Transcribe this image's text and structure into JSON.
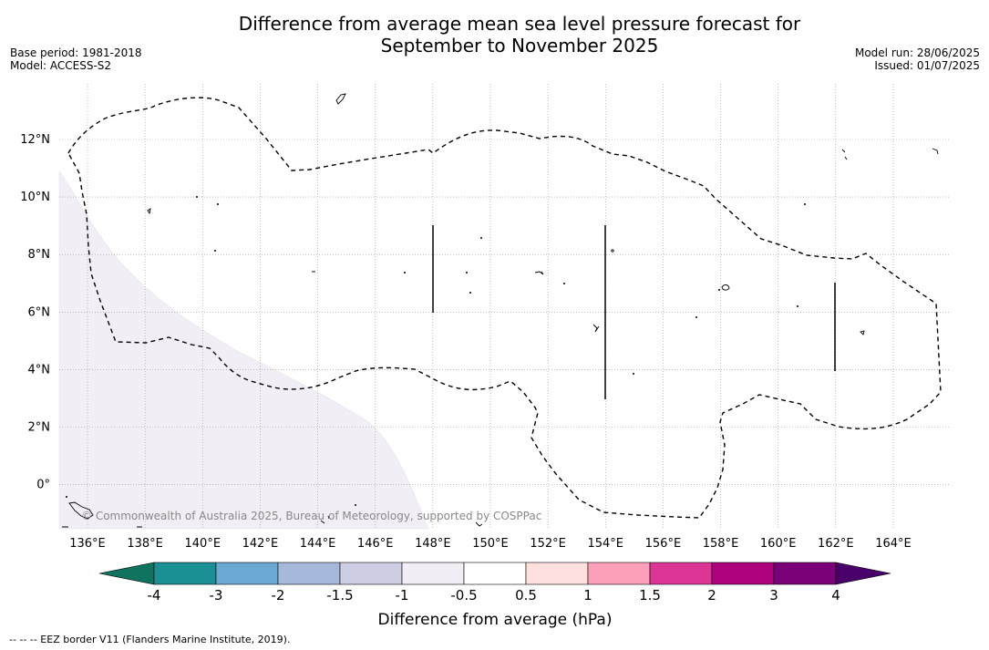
{
  "title_line1": "Difference from average mean sea level pressure forecast for",
  "title_line2": "September to November 2025",
  "base_period": "Base period: 1981-2018",
  "model": "Model: ACCESS-S2",
  "model_run": "Model run: 28/06/2025",
  "issued": "Issued: 01/07/2025",
  "copyright": "© Commonwealth of Australia 2025, Bureau of Meteorology, supported by COSPPac",
  "footnote": "-- -- -- EEZ border V11 (Flanders Marine Institute, 2019).",
  "colorbar": {
    "title": "Difference from average (hPa)",
    "labels": [
      "-4",
      "-3",
      "-2",
      "-1.5",
      "-1",
      "-0.5",
      "0.5",
      "1",
      "1.5",
      "2",
      "3",
      "4"
    ],
    "colors": [
      "#1b9094",
      "#6ba9d3",
      "#a6b9db",
      "#cdcde4",
      "#f2eef6",
      "#ffffff",
      "#fde0dd",
      "#fba0b8",
      "#dd3596",
      "#ad017e",
      "#7a0177"
    ],
    "under_color": "#10735f",
    "over_color": "#4a006a"
  },
  "map": {
    "lon_labels": [
      "136°E",
      "138°E",
      "140°E",
      "142°E",
      "144°E",
      "146°E",
      "148°E",
      "150°E",
      "152°E",
      "154°E",
      "156°E",
      "158°E",
      "160°E",
      "162°E",
      "164°E"
    ],
    "lat_labels": [
      "12°N",
      "10°N",
      "8°N",
      "6°N",
      "4°N",
      "2°N",
      "0°"
    ],
    "shaded_region_color": "#f2eef6"
  }
}
